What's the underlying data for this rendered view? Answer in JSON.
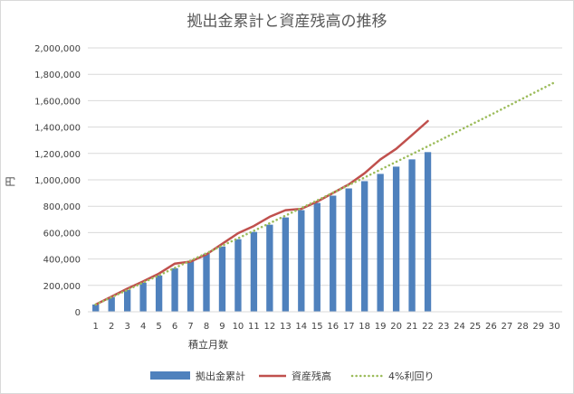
{
  "chart_data": {
    "type": "bar",
    "title": "拠出金累計と資産残高の推移",
    "xlabel": "積立月数",
    "ylabel": "円",
    "ylim": [
      0,
      2000000
    ],
    "y_tick_step": 200000,
    "y_ticks": [
      "0",
      "200,000",
      "400,000",
      "600,000",
      "800,000",
      "1,000,000",
      "1,200,000",
      "1,400,000",
      "1,600,000",
      "1,800,000",
      "2,000,000"
    ],
    "categories": [
      "1",
      "2",
      "3",
      "4",
      "5",
      "6",
      "7",
      "8",
      "9",
      "10",
      "11",
      "12",
      "13",
      "14",
      "15",
      "16",
      "17",
      "18",
      "19",
      "20",
      "21",
      "22",
      "23",
      "24",
      "25",
      "26",
      "27",
      "28",
      "29",
      "30"
    ],
    "grid": true,
    "legend_position": "bottom",
    "series": [
      {
        "name": "拠出金累計",
        "type": "bar",
        "color": "#4f81bd",
        "values": [
          55000,
          110000,
          165000,
          220000,
          275000,
          330000,
          385000,
          440000,
          495000,
          550000,
          605000,
          660000,
          715000,
          770000,
          825000,
          880000,
          935000,
          990000,
          1045000,
          1100000,
          1155000,
          1210000,
          null,
          null,
          null,
          null,
          null,
          null,
          null,
          null
        ]
      },
      {
        "name": "資産残高",
        "type": "line",
        "color": "#c0504d",
        "values": [
          55000,
          115000,
          175000,
          230000,
          290000,
          365000,
          380000,
          435000,
          515000,
          595000,
          650000,
          720000,
          770000,
          780000,
          835000,
          900000,
          965000,
          1050000,
          1155000,
          1235000,
          1340000,
          1445000,
          null,
          null,
          null,
          null,
          null,
          null,
          null,
          null
        ]
      },
      {
        "name": "4%利回り",
        "type": "line",
        "style": "dotted",
        "color": "#9bbb59",
        "values": [
          55000,
          110000,
          165000,
          221000,
          276000,
          332000,
          388000,
          444000,
          501000,
          557000,
          614000,
          671000,
          729000,
          786000,
          844000,
          902000,
          960000,
          1018000,
          1077000,
          1136000,
          1195000,
          1254000,
          1314000,
          1374000,
          1434000,
          1494000,
          1555000,
          1616000,
          1677000,
          1738000
        ]
      }
    ]
  }
}
